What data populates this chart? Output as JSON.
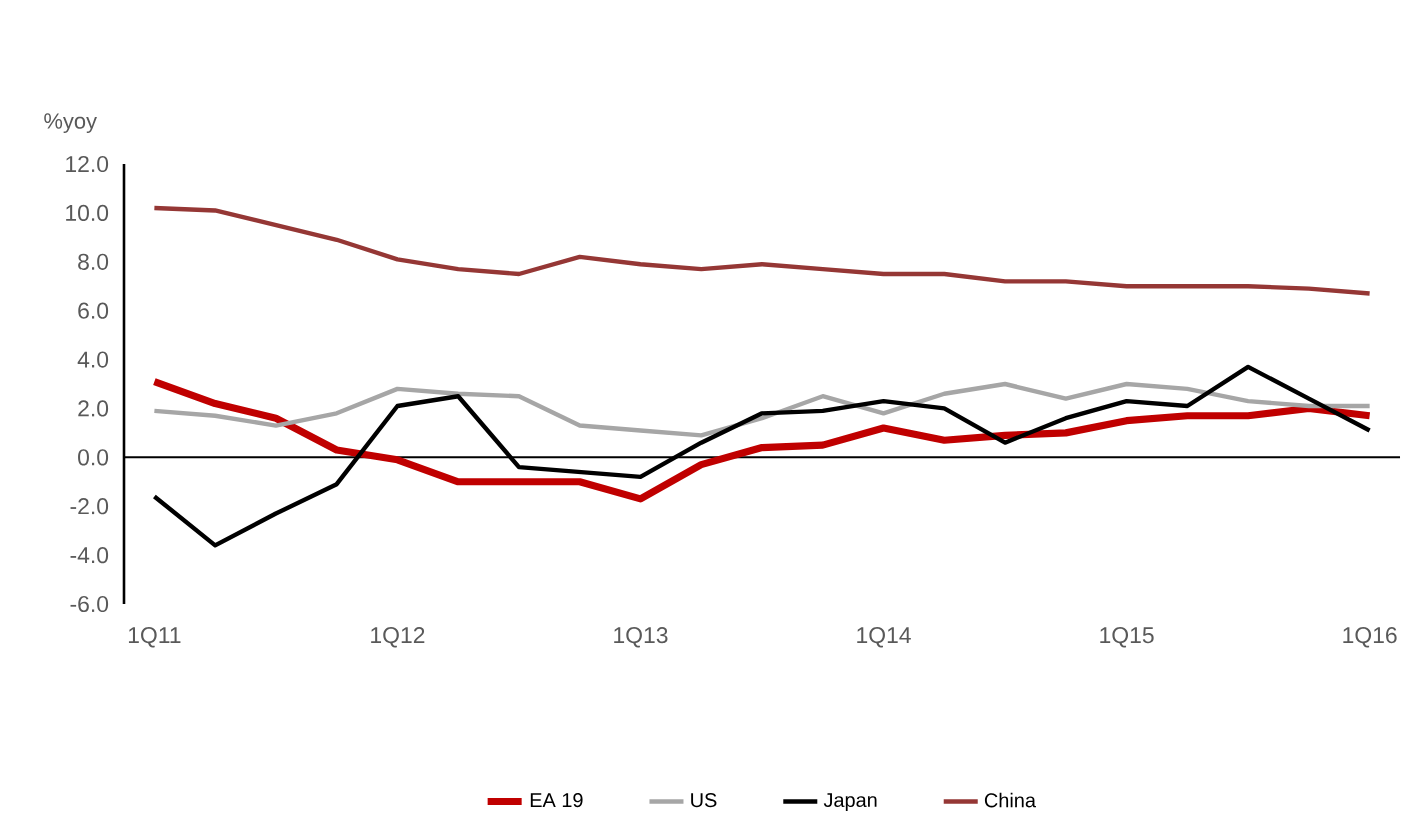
{
  "chart_data": {
    "type": "line",
    "ylabel": "%yoy",
    "categories": [
      "1Q11",
      null,
      null,
      null,
      "1Q12",
      null,
      null,
      null,
      "1Q13",
      null,
      null,
      null,
      "1Q14",
      null,
      null,
      null,
      "1Q15",
      null,
      null,
      null,
      "1Q16"
    ],
    "series": [
      {
        "name": "EA 19",
        "color": "#c00000",
        "values": [
          3.1,
          2.2,
          1.6,
          0.3,
          -0.1,
          -1.0,
          -1.0,
          -1.0,
          -1.7,
          -0.3,
          0.4,
          0.5,
          1.2,
          0.7,
          0.9,
          1.0,
          1.5,
          1.7,
          1.7,
          2.0,
          1.7
        ]
      },
      {
        "name": "US",
        "color": "#a6a6a6",
        "values": [
          1.9,
          1.7,
          1.3,
          1.8,
          2.8,
          2.6,
          2.5,
          1.3,
          1.1,
          0.9,
          1.6,
          2.5,
          1.8,
          2.6,
          3.0,
          2.4,
          3.0,
          2.8,
          2.3,
          2.1,
          2.1
        ]
      },
      {
        "name": "Japan",
        "color": "#000000",
        "values": [
          -1.6,
          -3.6,
          -2.3,
          -1.1,
          2.1,
          2.5,
          -0.4,
          -0.6,
          -0.8,
          0.6,
          1.8,
          1.9,
          2.3,
          2.0,
          0.6,
          1.6,
          2.3,
          2.1,
          3.7,
          2.4,
          1.1
        ]
      },
      {
        "name": "China",
        "color": "#953735",
        "values": [
          10.2,
          10.1,
          9.5,
          8.9,
          8.1,
          7.7,
          7.5,
          8.2,
          7.9,
          7.7,
          7.9,
          7.7,
          7.5,
          7.5,
          7.2,
          7.2,
          7.0,
          7.0,
          7.0,
          6.9,
          6.7
        ]
      }
    ],
    "ylim": [
      -6,
      12
    ],
    "yticks": [
      {
        "value": -6,
        "label": "-6.0"
      },
      {
        "value": -4,
        "label": "-4.0"
      },
      {
        "value": -2,
        "label": "-2.0"
      },
      {
        "value": 0,
        "label": "0.0"
      },
      {
        "value": 2,
        "label": "2.0"
      },
      {
        "value": 4,
        "label": "4.0"
      },
      {
        "value": 6,
        "label": "6.0"
      },
      {
        "value": 8,
        "label": "8.0"
      },
      {
        "value": 10,
        "label": "10.0"
      },
      {
        "value": 12,
        "label": "12.0"
      }
    ],
    "legend": "bottom",
    "marker": "none",
    "line_style": "solid"
  }
}
